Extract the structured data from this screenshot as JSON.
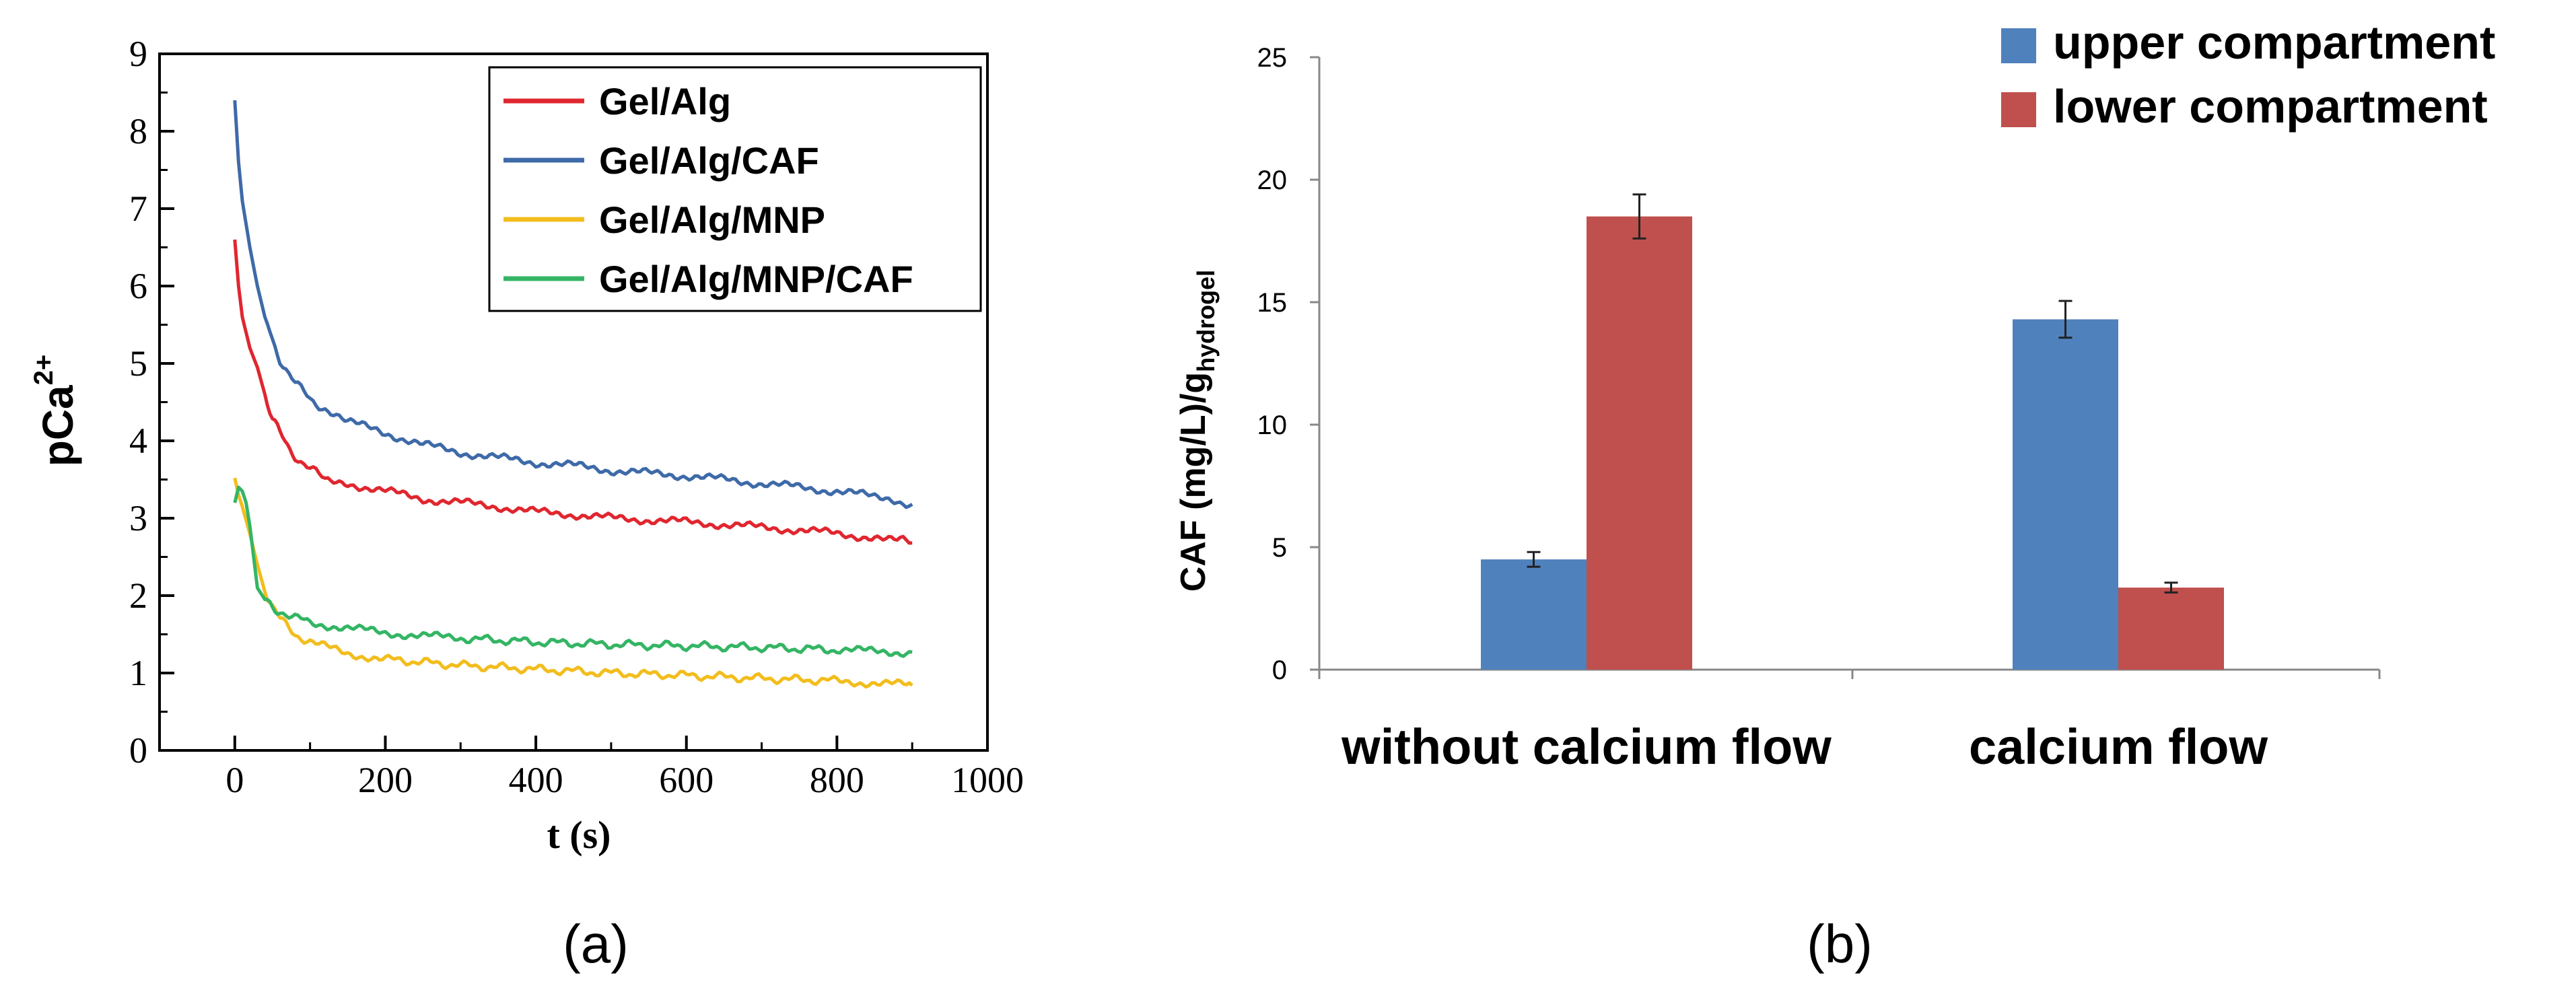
{
  "panel_labels": {
    "a": "(a)",
    "b": "(b)"
  },
  "chart_data": [
    {
      "type": "line",
      "xlabel": "t (s)",
      "ylabel_base": "pCa",
      "ylabel_sup": "2+",
      "xlim": [
        -100,
        1000
      ],
      "ylim": [
        0,
        9
      ],
      "xticks": [
        0,
        200,
        400,
        600,
        800,
        1000
      ],
      "yticks": [
        0,
        1,
        2,
        3,
        4,
        5,
        6,
        7,
        8,
        9
      ],
      "grid": false,
      "legend_position": "top-right",
      "series": [
        {
          "name": "Gel/Alg",
          "color": "#e0262f",
          "points": [
            [
              0,
              6.6
            ],
            [
              5,
              6.0
            ],
            [
              10,
              5.6
            ],
            [
              20,
              5.2
            ],
            [
              30,
              4.95
            ],
            [
              40,
              4.6
            ],
            [
              50,
              4.3
            ],
            [
              60,
              4.1
            ],
            [
              70,
              3.95
            ],
            [
              80,
              3.8
            ],
            [
              100,
              3.65
            ],
            [
              120,
              3.5
            ],
            [
              150,
              3.45
            ],
            [
              200,
              3.35
            ],
            [
              250,
              3.25
            ],
            [
              300,
              3.2
            ],
            [
              350,
              3.15
            ],
            [
              400,
              3.08
            ],
            [
              450,
              3.05
            ],
            [
              500,
              3.0
            ],
            [
              550,
              2.98
            ],
            [
              600,
              2.95
            ],
            [
              650,
              2.92
            ],
            [
              700,
              2.88
            ],
            [
              750,
              2.85
            ],
            [
              800,
              2.8
            ],
            [
              850,
              2.75
            ],
            [
              880,
              2.72
            ],
            [
              900,
              2.68
            ]
          ]
        },
        {
          "name": "Gel/Alg/CAF",
          "color": "#3e6aa8",
          "points": [
            [
              0,
              8.4
            ],
            [
              5,
              7.6
            ],
            [
              10,
              7.1
            ],
            [
              20,
              6.5
            ],
            [
              30,
              6.0
            ],
            [
              40,
              5.6
            ],
            [
              50,
              5.3
            ],
            [
              60,
              5.05
            ],
            [
              80,
              4.75
            ],
            [
              100,
              4.55
            ],
            [
              120,
              4.4
            ],
            [
              150,
              4.25
            ],
            [
              200,
              4.1
            ],
            [
              250,
              3.95
            ],
            [
              300,
              3.85
            ],
            [
              350,
              3.78
            ],
            [
              400,
              3.72
            ],
            [
              450,
              3.68
            ],
            [
              500,
              3.62
            ],
            [
              550,
              3.58
            ],
            [
              600,
              3.55
            ],
            [
              650,
              3.5
            ],
            [
              700,
              3.45
            ],
            [
              750,
              3.4
            ],
            [
              800,
              3.35
            ],
            [
              850,
              3.28
            ],
            [
              880,
              3.22
            ],
            [
              900,
              3.18
            ]
          ]
        },
        {
          "name": "Gel/Alg/MNP",
          "color": "#f2bd1d",
          "points": [
            [
              0,
              3.52
            ],
            [
              5,
              3.3
            ],
            [
              10,
              3.15
            ],
            [
              20,
              2.8
            ],
            [
              30,
              2.4
            ],
            [
              40,
              2.05
            ],
            [
              50,
              1.85
            ],
            [
              60,
              1.7
            ],
            [
              80,
              1.5
            ],
            [
              100,
              1.4
            ],
            [
              150,
              1.25
            ],
            [
              200,
              1.18
            ],
            [
              300,
              1.1
            ],
            [
              400,
              1.05
            ],
            [
              500,
              1.0
            ],
            [
              600,
              0.97
            ],
            [
              700,
              0.93
            ],
            [
              800,
              0.9
            ],
            [
              850,
              0.87
            ],
            [
              900,
              0.84
            ]
          ]
        },
        {
          "name": "Gel/Alg/MNP/CAF",
          "color": "#34b564",
          "points": [
            [
              0,
              3.2
            ],
            [
              5,
              3.4
            ],
            [
              10,
              3.35
            ],
            [
              15,
              3.2
            ],
            [
              20,
              2.9
            ],
            [
              25,
              2.5
            ],
            [
              30,
              2.1
            ],
            [
              40,
              1.95
            ],
            [
              50,
              1.85
            ],
            [
              60,
              1.8
            ],
            [
              80,
              1.72
            ],
            [
              100,
              1.65
            ],
            [
              150,
              1.58
            ],
            [
              200,
              1.52
            ],
            [
              250,
              1.48
            ],
            [
              300,
              1.45
            ],
            [
              400,
              1.4
            ],
            [
              500,
              1.37
            ],
            [
              600,
              1.35
            ],
            [
              700,
              1.33
            ],
            [
              800,
              1.3
            ],
            [
              850,
              1.28
            ],
            [
              900,
              1.27
            ]
          ]
        }
      ]
    },
    {
      "type": "bar",
      "categories": [
        "without calcium flow",
        "calcium flow"
      ],
      "ylabel_main": "CAF (mg/L)/g",
      "ylabel_sub": "hydrogel",
      "ylim": [
        0,
        25
      ],
      "yticks": [
        0,
        5,
        10,
        15,
        20,
        25
      ],
      "grid": false,
      "legend_position": "top-right",
      "series": [
        {
          "name": "upper compartment",
          "color": "#4f81bd",
          "values": [
            4.5,
            14.3
          ],
          "errors": [
            0.3,
            0.75
          ]
        },
        {
          "name": "lower compartment",
          "color": "#c0504d",
          "values": [
            18.5,
            3.35
          ],
          "errors": [
            0.9,
            0.2
          ]
        }
      ]
    }
  ]
}
